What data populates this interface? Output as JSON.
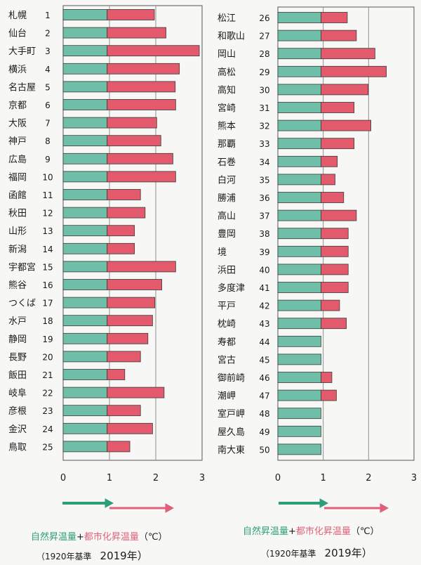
{
  "colors": {
    "natural": "#6fbfa8",
    "urban": "#e35a6d",
    "natural_arrow": "#2e9e78",
    "urban_arrow": "#e0607a",
    "grid": "#8f8f8f",
    "frame": "#555555"
  },
  "caption": {
    "natural_label": "自然昇温量",
    "plus": "+",
    "urban_label": "都市化昇温量",
    "unit": "（℃）",
    "base_note": "（1920年基準",
    "year": "2019年）"
  },
  "chart_data": [
    {
      "type": "bar",
      "stacked": true,
      "orientation": "horizontal",
      "xlim": [
        0,
        3
      ],
      "x_ticks": [
        "0",
        "1",
        "2",
        "3"
      ],
      "categories": [
        "札幌",
        "仙台",
        "大手町",
        "横浜",
        "名古屋",
        "京都",
        "大阪",
        "神戸",
        "広島",
        "福岡",
        "函館",
        "秋田",
        "山形",
        "新潟",
        "宇都宮",
        "熊谷",
        "つくば",
        "水戸",
        "静岡",
        "長野",
        "飯田",
        "岐阜",
        "彦根",
        "金沢",
        "鳥取"
      ],
      "numbers": [
        "1",
        "2",
        "3",
        "4",
        "5",
        "6",
        "7",
        "8",
        "9",
        "10",
        "11",
        "12",
        "13",
        "14",
        "15",
        "16",
        "17",
        "18",
        "19",
        "20",
        "21",
        "22",
        "23",
        "24",
        "25"
      ],
      "series": [
        {
          "name": "自然昇温量",
          "values": [
            0.95,
            0.95,
            0.95,
            0.95,
            0.95,
            0.95,
            0.95,
            0.95,
            0.95,
            0.95,
            0.95,
            0.95,
            0.95,
            0.95,
            0.95,
            0.95,
            0.95,
            0.95,
            0.95,
            0.95,
            0.95,
            0.95,
            0.95,
            0.95,
            0.95
          ]
        },
        {
          "name": "都市化昇温量",
          "values": [
            1.02,
            1.27,
            1.99,
            1.56,
            1.47,
            1.48,
            1.07,
            1.16,
            1.42,
            1.48,
            0.72,
            0.82,
            0.59,
            0.59,
            1.48,
            1.18,
            1.03,
            0.98,
            0.88,
            0.72,
            0.38,
            1.23,
            0.72,
            0.98,
            0.49
          ]
        }
      ]
    },
    {
      "type": "bar",
      "stacked": true,
      "orientation": "horizontal",
      "xlim": [
        0,
        3
      ],
      "x_ticks": [
        "0",
        "1",
        "2",
        "3"
      ],
      "categories": [
        "松江",
        "和歌山",
        "岡山",
        "高松",
        "高知",
        "宮崎",
        "熊本",
        "那覇",
        "石巻",
        "白河",
        "勝浦",
        "高山",
        "豊岡",
        "境",
        "浜田",
        "多度津",
        "平戸",
        "枕崎",
        "寿都",
        "宮古",
        "御前崎",
        "潮岬",
        "室戸岬",
        "屋久島",
        "南大東"
      ],
      "numbers": [
        "26",
        "27",
        "28",
        "29",
        "30",
        "31",
        "32",
        "33",
        "34",
        "35",
        "36",
        "37",
        "38",
        "39",
        "40",
        "41",
        "42",
        "43",
        "44",
        "45",
        "46",
        "47",
        "48",
        "49",
        "50"
      ],
      "series": [
        {
          "name": "自然昇温量",
          "values": [
            0.95,
            0.95,
            0.95,
            0.95,
            0.95,
            0.95,
            0.95,
            0.95,
            0.95,
            0.95,
            0.95,
            0.95,
            0.95,
            0.95,
            0.95,
            0.95,
            0.95,
            0.95,
            0.95,
            0.95,
            0.95,
            0.95,
            0.95,
            0.95,
            0.95
          ]
        },
        {
          "name": "都市化昇温量",
          "values": [
            0.58,
            0.78,
            1.19,
            1.44,
            1.04,
            0.73,
            1.1,
            0.73,
            0.36,
            0.31,
            0.5,
            0.78,
            0.6,
            0.6,
            0.6,
            0.6,
            0.41,
            0.56,
            0.0,
            0.0,
            0.24,
            0.34,
            0.0,
            0.0,
            0.0
          ]
        }
      ]
    }
  ]
}
